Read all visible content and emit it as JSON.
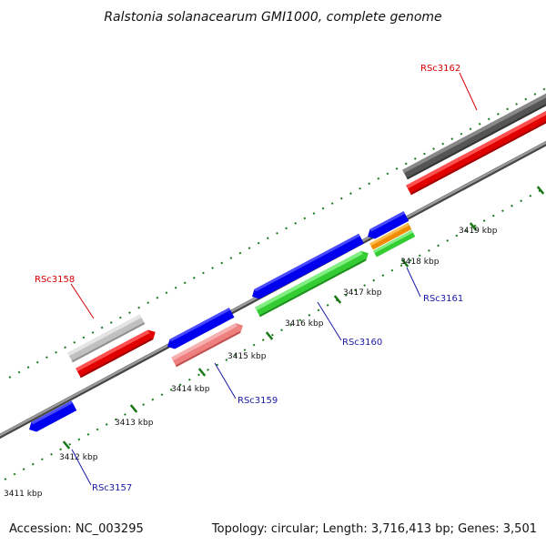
{
  "title": "Ralstonia solanacearum GMI1000, complete genome",
  "footer": {
    "accession": "Accession: NC_003295",
    "topology": "Topology: circular; Length: 3,716,413 bp; Genes: 3,501"
  },
  "kbp_labels": [
    "3411 kbp",
    "3412 kbp",
    "3413 kbp",
    "3414 kbp",
    "3415 kbp",
    "3416 kbp",
    "3417 kbp",
    "3418 kbp",
    "3419 kbp"
  ],
  "gene_labels": {
    "RSc3162": "RSc3162",
    "RSc3158": "RSc3158",
    "RSc3161": "RSc3161",
    "RSc3160": "RSc3160",
    "RSc3159": "RSc3159",
    "RSc3157": "RSc3157"
  },
  "colors": {
    "backbone": "#7a7a7a",
    "tick": "#1a7a1a",
    "forward_cds": "#0000ee",
    "reverse_cds": "#e00000",
    "gray_feature": "#c8c8c8",
    "dark_feature": "#555555",
    "green_feature": "#33cc33",
    "pink_feature": "#ee8080",
    "orange_feature": "#f08c00",
    "label_red": "#d40000",
    "label_blue": "#1a1aa8"
  }
}
